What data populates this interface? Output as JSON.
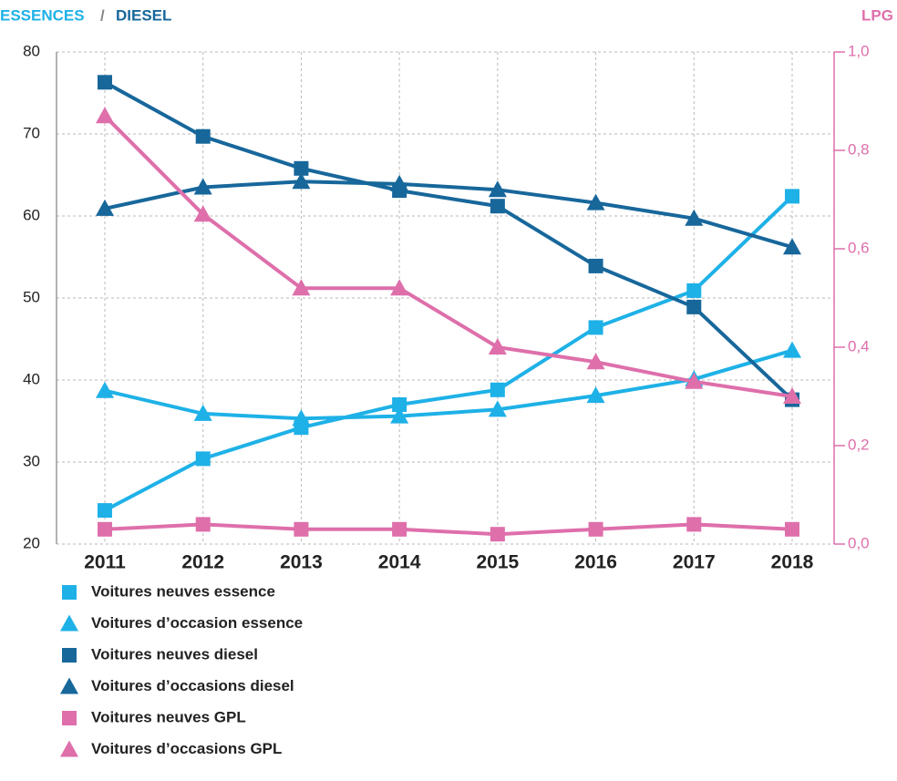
{
  "chart_data": {
    "type": "line",
    "y_label": {
      "essence": "ESSENCES",
      "sep": "/",
      "diesel": "DIESEL"
    },
    "y2_label": "LPG",
    "categories": [
      "2011",
      "2012",
      "2013",
      "2014",
      "2015",
      "2016",
      "2017",
      "2018"
    ],
    "ylim": [
      20,
      80
    ],
    "yticks": [
      20,
      30,
      40,
      50,
      60,
      70,
      80
    ],
    "y2lim": [
      0,
      1
    ],
    "y2ticks": [
      {
        "value": 0,
        "label": "0,0"
      },
      {
        "value": 0.2,
        "label": "0,2"
      },
      {
        "value": 0.4,
        "label": "0,4"
      },
      {
        "value": 0.6,
        "label": "0,6"
      },
      {
        "value": 0.8,
        "label": "0,8"
      },
      {
        "value": 1,
        "label": "1,0"
      }
    ],
    "grid": true,
    "series": [
      {
        "name": "Voitures neuves essence",
        "color": "#1eb1e7",
        "marker": "square",
        "values": [
          24.1,
          30.4,
          34.2,
          37.0,
          38.8,
          46.4,
          50.9,
          62.4
        ]
      },
      {
        "name": "Voitures d’occasion essence",
        "color": "#1eb1e7",
        "marker": "triangle",
        "values": [
          38.7,
          35.9,
          35.3,
          35.6,
          36.4,
          38.1,
          40.1,
          43.6
        ]
      },
      {
        "name": "Voitures neuves diesel",
        "color": "#17679b",
        "marker": "square",
        "values": [
          76.3,
          69.7,
          65.8,
          63.1,
          61.2,
          53.9,
          48.9,
          37.6
        ]
      },
      {
        "name": "Voitures d’occasions diesel",
        "color": "#17679b",
        "marker": "triangle",
        "values": [
          60.9,
          63.5,
          64.2,
          63.9,
          63.2,
          61.6,
          59.7,
          56.2
        ]
      },
      {
        "name": "Voitures neuves GPL",
        "color": "#de6fab",
        "marker": "square",
        "axis": "y2",
        "values": [
          0.03,
          0.04,
          0.03,
          0.03,
          0.02,
          0.03,
          0.04,
          0.03
        ]
      },
      {
        "name": "Voitures d’occasions GPL",
        "color": "#de6fab",
        "marker": "triangle",
        "axis": "y2",
        "values": [
          0.87,
          0.67,
          0.52,
          0.52,
          0.4,
          0.37,
          0.33,
          0.3
        ]
      }
    ]
  }
}
